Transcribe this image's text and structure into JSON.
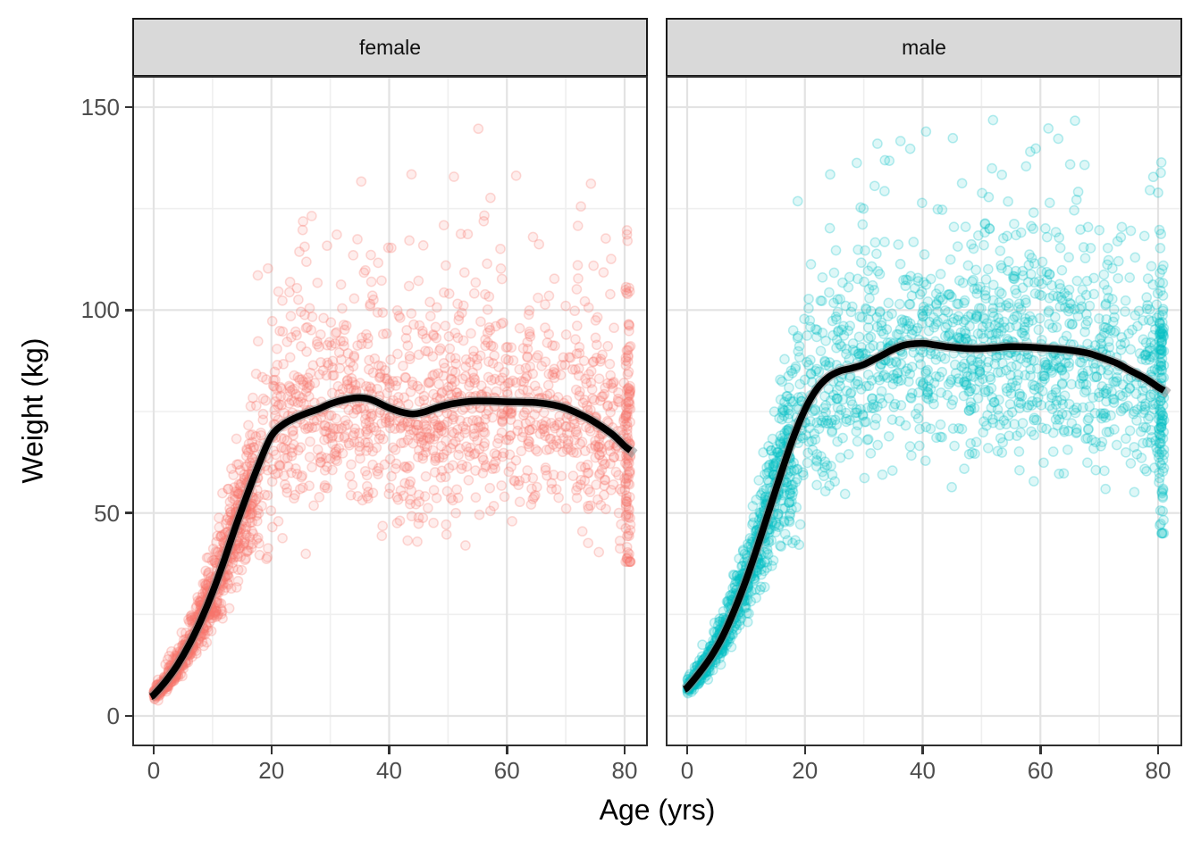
{
  "figure": {
    "x_axis_title": "Age (yrs)",
    "y_axis_title": "Weight (kg)"
  },
  "colors": {
    "background": "#ffffff",
    "panel_background": "#ffffff",
    "strip_fill": "#d9d9d9",
    "strip_border": "#1a1a1a",
    "panel_border": "#2e2e2e",
    "grid_major": "#e3e3e3",
    "grid_minor": "#efefef",
    "tick_mark": "#333333",
    "tick_label": "#4d4d4d",
    "smooth_line": "#000000",
    "smooth_ribbon": "#8a8a8a",
    "female_points": "#F8766D",
    "male_points": "#00BFC4"
  },
  "chart_data": {
    "type": "scatter",
    "title": "",
    "xlabel": "Age (yrs)",
    "ylabel": "Weight (kg)",
    "xlim": [
      -3.5,
      84
    ],
    "ylim": [
      -7.5,
      157.5
    ],
    "x_ticks": [
      0,
      20,
      40,
      60,
      80
    ],
    "x_tick_labels": [
      "0",
      "20",
      "40",
      "60",
      "80"
    ],
    "x_minor_ticks": [
      10,
      30,
      50,
      70
    ],
    "y_ticks": [
      0,
      50,
      100,
      150
    ],
    "y_tick_labels": [
      "0",
      "50",
      "100",
      "150"
    ],
    "y_minor_ticks": [
      25,
      75,
      125
    ],
    "grid": true,
    "legend": "none",
    "facet_variable": "sex",
    "facets": [
      {
        "label": "female",
        "point_color": "#F8766D",
        "point_alpha": 0.13,
        "smooth_line": {
          "color": "#000000",
          "x": [
            -0.5,
            0,
            2,
            4,
            6,
            8,
            10,
            12,
            14,
            16,
            18,
            20,
            22,
            24,
            26,
            28,
            30,
            33,
            35,
            37,
            40,
            42,
            44,
            46,
            48,
            50,
            53,
            55,
            58,
            60,
            63,
            65,
            68,
            70,
            73,
            75,
            78,
            80,
            81
          ],
          "y": [
            4.8,
            5.2,
            8.5,
            12.5,
            17.5,
            23.5,
            30.5,
            38.5,
            47,
            55,
            62.5,
            69,
            71.8,
            73.4,
            74.6,
            75.6,
            76.9,
            78.1,
            78.4,
            77.9,
            75.9,
            74.9,
            74.4,
            74.9,
            75.9,
            76.7,
            77.4,
            77.6,
            77.5,
            77.4,
            77.3,
            77.2,
            76.6,
            75.8,
            73.9,
            72.3,
            69.3,
            66.5,
            65.4
          ]
        },
        "scatter": {
          "seed": 20240601,
          "n_children": 780,
          "child_age_max": 17,
          "child_lognorm_sd": 0.16,
          "n_adults": 1230,
          "adult_age_min": 16.5,
          "adult_age_max": 80.3,
          "adult_core_sd": 12,
          "adult_upper_prob": 0.2,
          "adult_upper_shift": 18,
          "adult_upper_sd": 17,
          "adult_min_w": 37,
          "max_w": 150,
          "n_capped": 115,
          "cap_age": 80.15,
          "cap_age_jitter": 0.85,
          "cap_shift": 2,
          "cap_sd": 21,
          "cap_min_w": 38,
          "cap_max_w": 132
        }
      },
      {
        "label": "male",
        "point_color": "#00BFC4",
        "point_alpha": 0.13,
        "smooth_line": {
          "color": "#000000",
          "x": [
            -0.5,
            0,
            2,
            4,
            6,
            8,
            10,
            12,
            14,
            16,
            18,
            20,
            22,
            24,
            26,
            28,
            30,
            33,
            35,
            37,
            40,
            42,
            44,
            46,
            48,
            50,
            53,
            55,
            58,
            60,
            63,
            65,
            68,
            70,
            73,
            75,
            78,
            80,
            81
          ],
          "y": [
            6.6,
            7,
            10.5,
            14.5,
            19.5,
            26,
            33.5,
            42,
            51,
            60,
            68.5,
            75.5,
            80.5,
            83.5,
            85,
            85.7,
            86.6,
            88.8,
            90.3,
            91.4,
            91.8,
            91.4,
            91,
            90.7,
            90.5,
            90.5,
            90.8,
            91,
            90.9,
            90.7,
            90.4,
            90.1,
            89.4,
            88.5,
            86.9,
            85.3,
            83,
            81,
            80.2
          ]
        },
        "scatter": {
          "seed": 77031,
          "n_children": 760,
          "child_age_max": 17.5,
          "child_lognorm_sd": 0.15,
          "n_adults": 1260,
          "adult_age_min": 17,
          "adult_age_max": 80.3,
          "adult_core_sd": 12,
          "adult_upper_prob": 0.2,
          "adult_upper_shift": 16,
          "adult_upper_sd": 17,
          "adult_min_w": 42,
          "max_w": 150,
          "n_capped": 125,
          "cap_age": 80.15,
          "cap_age_jitter": 0.85,
          "cap_shift": 1,
          "cap_sd": 20,
          "cap_min_w": 45,
          "cap_max_w": 138
        }
      }
    ]
  }
}
